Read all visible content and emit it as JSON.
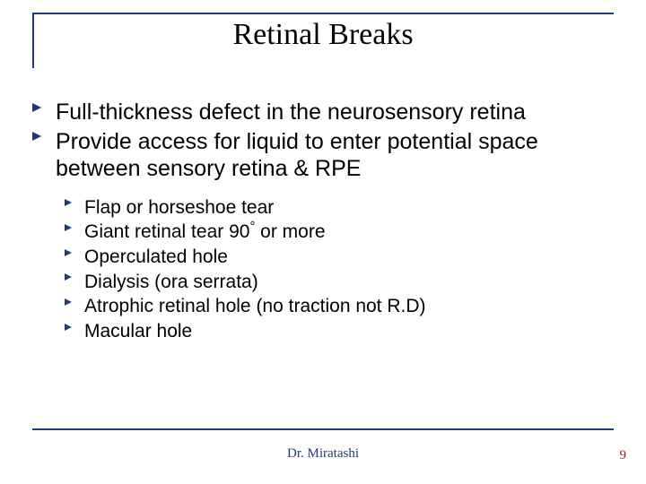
{
  "accent_color": "#1f3b78",
  "pagenum_color": "#9a1f1f",
  "title": "Retinal Breaks",
  "main": [
    "Full-thickness defect in the neurosensory retina",
    "Provide access for liquid to enter potential space between sensory retina & RPE"
  ],
  "sub": [
    "Flap or horseshoe tear",
    "Giant retinal tear 90",
    "Operculated hole",
    "Dialysis (ora serrata)",
    "Atrophic retinal hole (no traction not R.D)",
    "Macular hole"
  ],
  "deg_suffix": "°",
  "sub1_tail": " or more",
  "footer_center": "Dr. Miratashi",
  "page_number": "9"
}
